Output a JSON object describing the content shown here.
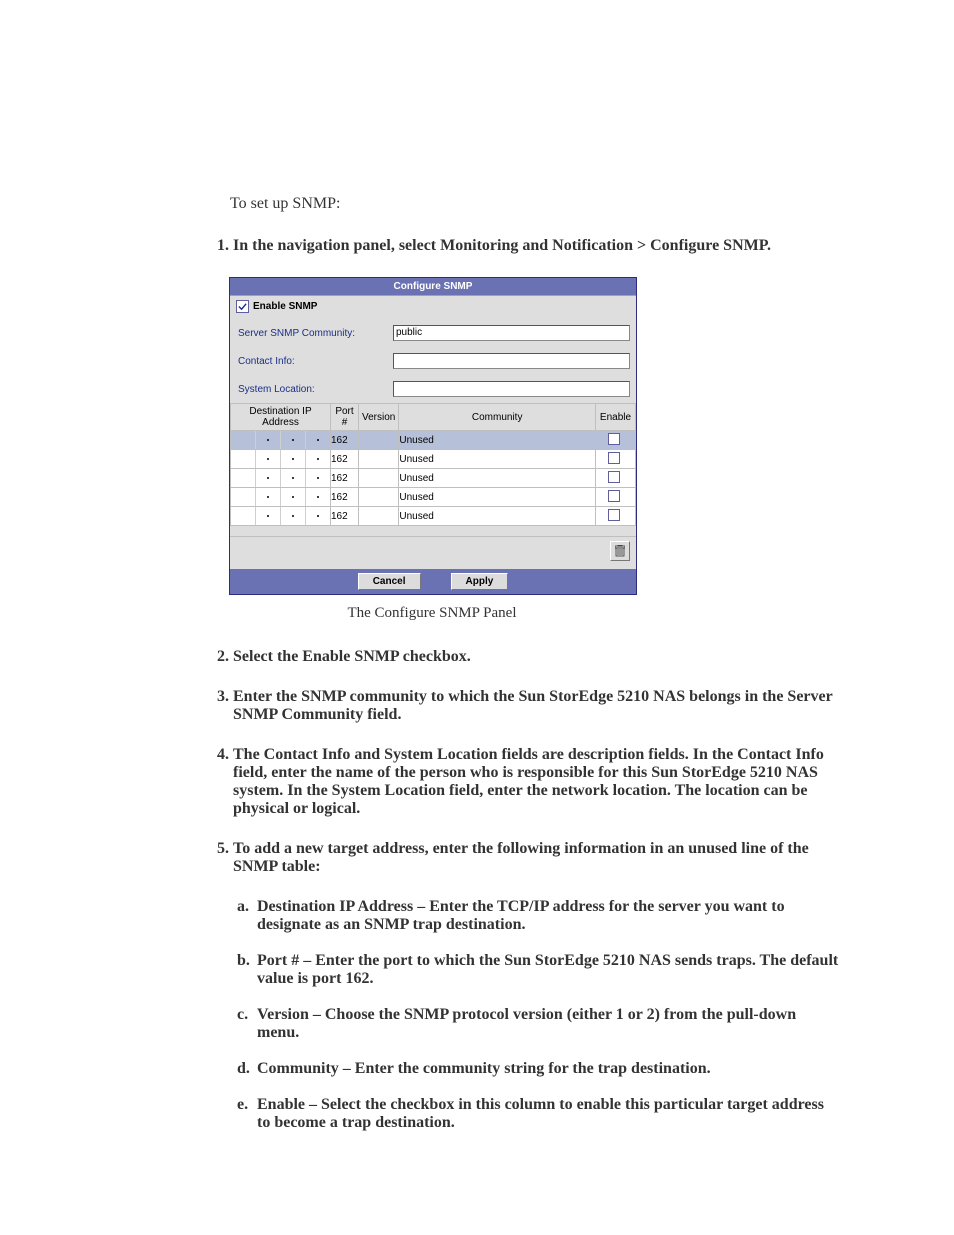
{
  "intro": "To set up SNMP:",
  "steps": [
    {
      "n": "1.",
      "t": "In the navigation panel, select Monitoring and Notification > Configure SNMP."
    },
    {
      "n": "2.",
      "t": "Select the Enable SNMP checkbox."
    },
    {
      "n": "3.",
      "t": "Enter the SNMP community to which the Sun StorEdge 5210 NAS belongs in the Server SNMP Community field."
    },
    {
      "n": "4.",
      "t": "The Contact Info and System Location fields are description fields. In the Contact Info field, enter the name of the person who is responsible for this Sun StorEdge 5210 NAS system. In the System Location field, enter the network location. The location can be physical or logical."
    },
    {
      "n": "5.",
      "t": "To add a new target address, enter the following information in an unused line of the SNMP table:"
    }
  ],
  "subs": [
    {
      "l": "a.",
      "lead": "Destination IP Address",
      "rest": " – Enter the TCP/IP address for the server you want to designate as an SNMP trap destination."
    },
    {
      "l": "b.",
      "lead": "Port #",
      "rest": " – Enter the port to which the Sun StorEdge 5210 NAS sends traps. The default value is port 162."
    },
    {
      "l": "c.",
      "lead": "Version",
      "rest": " – Choose the SNMP protocol version (either 1 or 2) from the pull-down menu."
    },
    {
      "l": "d.",
      "lead": "Community",
      "rest": " – Enter the community string for the trap destination."
    },
    {
      "l": "e.",
      "lead": "Enable",
      "rest": " – Select the checkbox in this column to enable this particular target address to become a trap destination."
    }
  ],
  "panel": {
    "title": "Configure SNMP",
    "enable_label": "Enable SNMP",
    "enable_checked": true,
    "labels": {
      "community": "Server SNMP Community:",
      "contact": "Contact Info:",
      "location": "System Location:"
    },
    "values": {
      "community": "public",
      "contact": "",
      "location": ""
    },
    "columns": [
      "Destination IP Address",
      "Port #",
      "Version",
      "Community",
      "Enable"
    ],
    "col_widths": [
      "100px",
      "28px",
      "38px",
      "178px",
      "40px"
    ],
    "rows": [
      {
        "port": "162",
        "version": "",
        "community": "Unused",
        "enable": false,
        "selected": true
      },
      {
        "port": "162",
        "version": "",
        "community": "Unused",
        "enable": false,
        "selected": false
      },
      {
        "port": "162",
        "version": "",
        "community": "Unused",
        "enable": false,
        "selected": false
      },
      {
        "port": "162",
        "version": "",
        "community": "Unused",
        "enable": false,
        "selected": false
      },
      {
        "port": "162",
        "version": "",
        "community": "Unused",
        "enable": false,
        "selected": false
      }
    ],
    "buttons": {
      "cancel": "Cancel",
      "apply": "Apply"
    },
    "colors": {
      "header_bg": "#6a72b3",
      "body_bg": "#dedede",
      "selected_row": "#b6c0d8",
      "border": "#bfbfbf",
      "label_color": "#1a2f88"
    }
  },
  "caption": "The Configure SNMP Panel"
}
